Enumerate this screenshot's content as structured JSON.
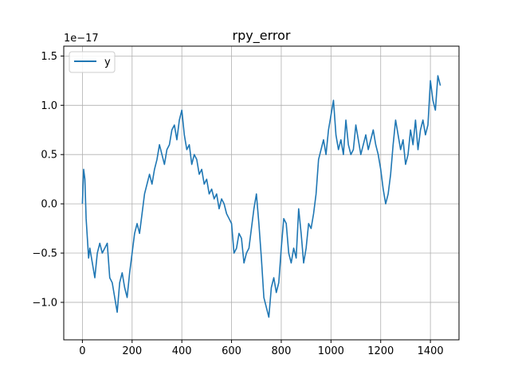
{
  "chart_data": {
    "type": "line",
    "title": "rpy_error",
    "xlabel": "",
    "ylabel": "",
    "y_scale_note": "1e−17",
    "xlim": [
      -75,
      1515
    ],
    "ylim": [
      -1.38,
      1.6
    ],
    "x_ticks": [
      0,
      200,
      400,
      600,
      800,
      1000,
      1200,
      1400
    ],
    "y_ticks": [
      -1.0,
      -0.5,
      0.0,
      0.5,
      1.0,
      1.5
    ],
    "x_tick_labels": [
      "0",
      "200",
      "400",
      "600",
      "800",
      "1000",
      "1200",
      "1400"
    ],
    "y_tick_labels": [
      "−1.0",
      "−0.5",
      "0.0",
      "0.5",
      "1.0",
      "1.5"
    ],
    "grid": true,
    "legend": {
      "placement": "top-left",
      "entries": [
        "y"
      ]
    },
    "series": [
      {
        "name": "y",
        "color": "#1f77b4",
        "x": [
          0,
          5,
          10,
          15,
          20,
          25,
          30,
          40,
          50,
          60,
          70,
          80,
          90,
          100,
          110,
          120,
          130,
          140,
          150,
          160,
          170,
          180,
          190,
          200,
          210,
          220,
          230,
          240,
          250,
          260,
          270,
          280,
          290,
          300,
          310,
          320,
          330,
          340,
          350,
          360,
          370,
          380,
          390,
          400,
          410,
          420,
          430,
          440,
          450,
          460,
          470,
          480,
          490,
          500,
          510,
          520,
          530,
          540,
          550,
          560,
          570,
          580,
          590,
          600,
          610,
          620,
          630,
          640,
          650,
          660,
          670,
          680,
          690,
          700,
          710,
          720,
          730,
          740,
          750,
          760,
          770,
          780,
          790,
          800,
          810,
          820,
          830,
          840,
          850,
          860,
          870,
          880,
          890,
          900,
          910,
          920,
          930,
          940,
          950,
          960,
          970,
          980,
          990,
          1000,
          1010,
          1020,
          1030,
          1040,
          1050,
          1060,
          1070,
          1080,
          1090,
          1100,
          1110,
          1120,
          1130,
          1140,
          1150,
          1160,
          1170,
          1180,
          1190,
          1200,
          1210,
          1220,
          1230,
          1240,
          1250,
          1260,
          1270,
          1280,
          1290,
          1300,
          1310,
          1320,
          1330,
          1340,
          1350,
          1360,
          1370,
          1380,
          1390,
          1400,
          1410,
          1420,
          1430,
          1440
        ],
        "y": [
          0.0,
          0.35,
          0.25,
          -0.15,
          -0.35,
          -0.55,
          -0.45,
          -0.6,
          -0.75,
          -0.5,
          -0.4,
          -0.5,
          -0.45,
          -0.4,
          -0.75,
          -0.8,
          -0.95,
          -1.1,
          -0.8,
          -0.7,
          -0.85,
          -0.95,
          -0.7,
          -0.5,
          -0.3,
          -0.2,
          -0.3,
          -0.1,
          0.1,
          0.2,
          0.3,
          0.2,
          0.35,
          0.45,
          0.6,
          0.5,
          0.4,
          0.55,
          0.6,
          0.75,
          0.8,
          0.65,
          0.85,
          0.95,
          0.7,
          0.55,
          0.6,
          0.4,
          0.5,
          0.45,
          0.3,
          0.35,
          0.2,
          0.25,
          0.1,
          0.15,
          0.05,
          0.1,
          -0.05,
          0.05,
          0.0,
          -0.1,
          -0.15,
          -0.2,
          -0.5,
          -0.45,
          -0.3,
          -0.35,
          -0.6,
          -0.5,
          -0.45,
          -0.25,
          -0.05,
          0.1,
          -0.2,
          -0.55,
          -0.95,
          -1.05,
          -1.15,
          -0.85,
          -0.75,
          -0.9,
          -0.8,
          -0.45,
          -0.15,
          -0.2,
          -0.5,
          -0.6,
          -0.45,
          -0.55,
          -0.05,
          -0.3,
          -0.6,
          -0.45,
          -0.2,
          -0.25,
          -0.1,
          0.1,
          0.45,
          0.55,
          0.65,
          0.5,
          0.75,
          0.9,
          1.05,
          0.7,
          0.55,
          0.65,
          0.5,
          0.85,
          0.6,
          0.5,
          0.55,
          0.8,
          0.65,
          0.5,
          0.6,
          0.7,
          0.55,
          0.65,
          0.75,
          0.6,
          0.5,
          0.35,
          0.15,
          0.0,
          0.1,
          0.3,
          0.6,
          0.85,
          0.7,
          0.55,
          0.65,
          0.4,
          0.5,
          0.75,
          0.6,
          0.85,
          0.55,
          0.75,
          0.85,
          0.7,
          0.8,
          1.25,
          1.05,
          0.95,
          1.3,
          1.2
        ]
      }
    ]
  }
}
